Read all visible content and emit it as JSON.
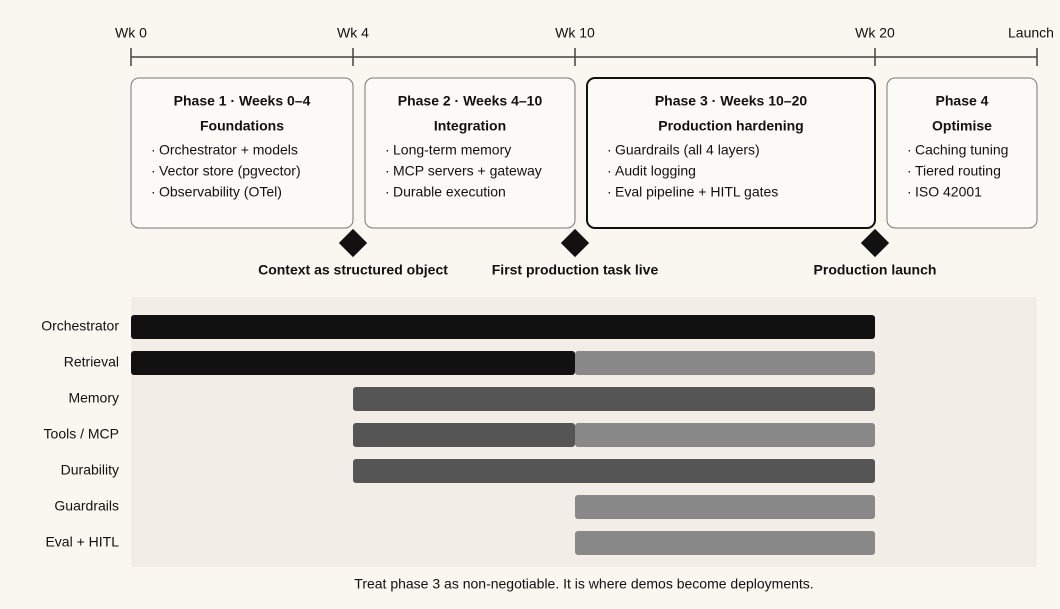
{
  "timeline": {
    "ticks": [
      {
        "value": 0,
        "label": "Wk 0"
      },
      {
        "value": 4,
        "label": "Wk 4"
      },
      {
        "value": 10,
        "label": "Wk 10"
      },
      {
        "value": 20,
        "label": "Wk 20"
      }
    ],
    "end_label": "Launch →"
  },
  "phases": [
    {
      "title": "Phase 1 · Weeks 0–4",
      "subtitle": "Foundations",
      "start": 0,
      "end": 4,
      "items": [
        "Orchestrator + models",
        "Vector store (pgvector)",
        "Observability (OTel)"
      ]
    },
    {
      "title": "Phase 2 · Weeks 4–10",
      "subtitle": "Integration",
      "start": 4,
      "end": 10,
      "items": [
        "Long-term memory",
        "MCP servers + gateway",
        "Durable execution"
      ]
    },
    {
      "title": "Phase 3 · Weeks 10–20",
      "subtitle": "Production hardening",
      "start": 10,
      "end": 20,
      "emphasis": true,
      "items": [
        "Guardrails (all 4 layers)",
        "Audit logging",
        "Eval pipeline + HITL gates"
      ]
    },
    {
      "title": "Phase 4",
      "subtitle": "Optimise",
      "start": 20,
      "items": [
        "Caching tuning",
        "Tiered routing",
        "ISO 42001"
      ]
    }
  ],
  "milestones": [
    {
      "week": 4,
      "label": "Context as structured object"
    },
    {
      "week": 10,
      "label": "First production task live"
    },
    {
      "week": 20,
      "label": "Production launch"
    }
  ],
  "rows": [
    {
      "label": "Orchestrator",
      "segments": [
        {
          "start": 0,
          "end": 20,
          "color": "#111111"
        }
      ]
    },
    {
      "label": "Retrieval",
      "segments": [
        {
          "start": 0,
          "end": 10,
          "color": "#111111"
        },
        {
          "start": 10,
          "end": 20,
          "color": "#888888"
        }
      ]
    },
    {
      "label": "Memory",
      "segments": [
        {
          "start": 4,
          "end": 20,
          "color": "#555555"
        }
      ]
    },
    {
      "label": "Tools / MCP",
      "segments": [
        {
          "start": 4,
          "end": 10,
          "color": "#555555"
        },
        {
          "start": 10,
          "end": 20,
          "color": "#888888"
        }
      ]
    },
    {
      "label": "Durability",
      "segments": [
        {
          "start": 4,
          "end": 20,
          "color": "#555555"
        }
      ]
    },
    {
      "label": "Guardrails",
      "segments": [
        {
          "start": 10,
          "end": 20,
          "color": "#888888"
        }
      ]
    },
    {
      "label": "Eval + HITL",
      "segments": [
        {
          "start": 10,
          "end": 20,
          "color": "#888888"
        }
      ]
    }
  ],
  "footer": "Treat phase 3 as non-negotiable. It is where demos become deployments."
}
